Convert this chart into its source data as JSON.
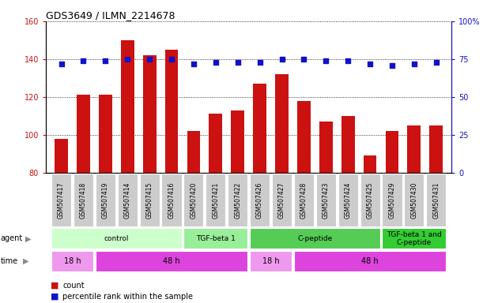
{
  "title": "GDS3649 / ILMN_2214678",
  "samples": [
    "GSM507417",
    "GSM507418",
    "GSM507419",
    "GSM507414",
    "GSM507415",
    "GSM507416",
    "GSM507420",
    "GSM507421",
    "GSM507422",
    "GSM507426",
    "GSM507427",
    "GSM507428",
    "GSM507423",
    "GSM507424",
    "GSM507425",
    "GSM507429",
    "GSM507430",
    "GSM507431"
  ],
  "counts": [
    98,
    121,
    121,
    150,
    142,
    145,
    102,
    111,
    113,
    127,
    132,
    118,
    107,
    110,
    89,
    102,
    105,
    105
  ],
  "percentile_ranks": [
    72,
    74,
    74,
    75,
    75,
    75,
    72,
    73,
    73,
    73,
    75,
    75,
    74,
    74,
    72,
    71,
    72,
    73
  ],
  "ylim_left": [
    80,
    160
  ],
  "ylim_right": [
    0,
    100
  ],
  "yticks_left": [
    80,
    100,
    120,
    140,
    160
  ],
  "yticks_right": [
    0,
    25,
    50,
    75,
    100
  ],
  "bar_color": "#cc1111",
  "dot_color": "#1111cc",
  "agent_groups": [
    {
      "label": "control",
      "start": 0,
      "end": 6,
      "color": "#ccffcc"
    },
    {
      "label": "TGF-beta 1",
      "start": 6,
      "end": 9,
      "color": "#99ee99"
    },
    {
      "label": "C-peptide",
      "start": 9,
      "end": 15,
      "color": "#55cc55"
    },
    {
      "label": "TGF-beta 1 and\nC-peptide",
      "start": 15,
      "end": 18,
      "color": "#33cc33"
    }
  ],
  "time_groups": [
    {
      "label": "18 h",
      "start": 0,
      "end": 2,
      "color": "#ee99ee"
    },
    {
      "label": "48 h",
      "start": 2,
      "end": 9,
      "color": "#dd44dd"
    },
    {
      "label": "18 h",
      "start": 9,
      "end": 11,
      "color": "#ee99ee"
    },
    {
      "label": "48 h",
      "start": 11,
      "end": 18,
      "color": "#dd44dd"
    }
  ],
  "legend_count_label": "count",
  "legend_pct_label": "percentile rank within the sample",
  "left_ylabel_color": "#cc1111",
  "right_ylabel_color": "#1111cc",
  "sample_box_color": "#cccccc",
  "agent_label_color": "#888888",
  "time_label_color": "#888888"
}
